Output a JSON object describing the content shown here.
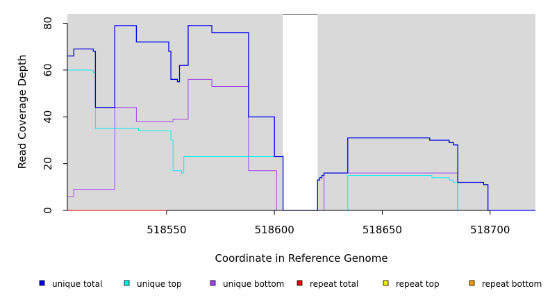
{
  "chart_data": {
    "type": "line",
    "xlabel": "Coordinate in Reference Genome",
    "ylabel": "Read Coverage Depth",
    "xlim": [
      518504,
      518721
    ],
    "ylim": [
      0,
      84
    ],
    "x_ticks": [
      518550,
      518600,
      518650,
      518700
    ],
    "y_ticks": [
      0,
      20,
      40,
      60,
      80
    ],
    "x_tick_labels": [
      "518550",
      "518600",
      "518650",
      "518700"
    ],
    "y_tick_labels": [
      "0",
      "20",
      "40",
      "60",
      "80"
    ],
    "background": "#d9d9d9",
    "gaps": [
      [
        518604,
        518620
      ]
    ],
    "legend_position": "bottom",
    "series": [
      {
        "name": "unique total",
        "color": "#0000ee",
        "points": [
          [
            518504,
            66
          ],
          [
            518507,
            69
          ],
          [
            518516,
            68
          ],
          [
            518517,
            44
          ],
          [
            518526,
            79
          ],
          [
            518536,
            72
          ],
          [
            518551,
            68
          ],
          [
            518552,
            56
          ],
          [
            518555,
            55
          ],
          [
            518556,
            62
          ],
          [
            518560,
            79
          ],
          [
            518571,
            76
          ],
          [
            518588,
            40
          ],
          [
            518600,
            23
          ],
          [
            518604,
            23
          ],
          [
            518604,
            0
          ],
          [
            518620,
            0
          ],
          [
            518620,
            13
          ],
          [
            518621,
            14
          ],
          [
            518622,
            15
          ],
          [
            518623,
            16
          ],
          [
            518634,
            31
          ],
          [
            518672,
            30
          ],
          [
            518681,
            29
          ],
          [
            518683,
            28
          ],
          [
            518685,
            12
          ],
          [
            518697,
            11
          ],
          [
            518699,
            0
          ],
          [
            518721,
            0
          ]
        ]
      },
      {
        "name": "unique top",
        "color": "#00eeee",
        "points": [
          [
            518504,
            60
          ],
          [
            518516,
            59
          ],
          [
            518517,
            35
          ],
          [
            518537,
            34
          ],
          [
            518552,
            30
          ],
          [
            518553,
            17
          ],
          [
            518557,
            16
          ],
          [
            518558,
            23
          ],
          [
            518604,
            23
          ],
          [
            518604,
            0
          ],
          [
            518634,
            0
          ],
          [
            518634,
            15
          ],
          [
            518673,
            14
          ],
          [
            518681,
            13
          ],
          [
            518683,
            12
          ],
          [
            518685,
            0
          ],
          [
            518721,
            0
          ]
        ]
      },
      {
        "name": "unique bottom",
        "color": "#a040f0",
        "points": [
          [
            518504,
            6
          ],
          [
            518507,
            9
          ],
          [
            518526,
            44
          ],
          [
            518536,
            38
          ],
          [
            518553,
            39
          ],
          [
            518560,
            56
          ],
          [
            518571,
            53
          ],
          [
            518588,
            17
          ],
          [
            518601,
            0
          ],
          [
            518620,
            0
          ],
          [
            518623,
            16
          ],
          [
            518685,
            0
          ],
          [
            518721,
            0
          ]
        ]
      },
      {
        "name": "repeat total",
        "color": "#ee0000",
        "points": [
          [
            518504,
            0
          ],
          [
            518721,
            0
          ]
        ]
      },
      {
        "name": "repeat top",
        "color": "#eeee00",
        "points": [
          [
            518504,
            0
          ],
          [
            518721,
            0
          ]
        ]
      },
      {
        "name": "repeat bottom",
        "color": "#ee9a00",
        "points": [
          [
            518504,
            0
          ],
          [
            518721,
            0
          ]
        ]
      }
    ]
  }
}
